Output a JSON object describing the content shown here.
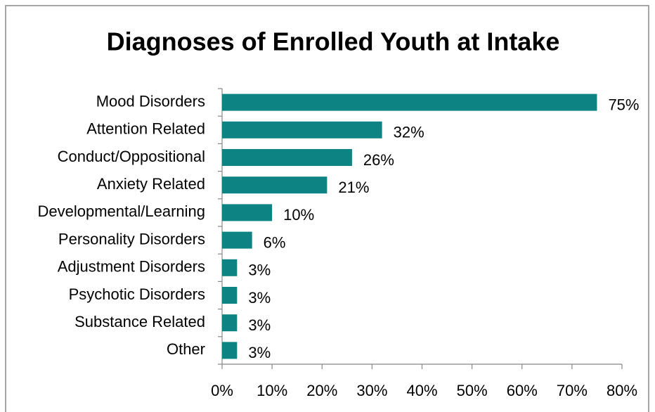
{
  "chart_data": {
    "type": "barh",
    "title": "Diagnoses of Enrolled Youth at Intake",
    "categories": [
      "Mood Disorders",
      "Attention Related",
      "Conduct/Oppositional",
      "Anxiety Related",
      "Developmental/Learning",
      "Personality Disorders",
      "Adjustment Disorders",
      "Psychotic Disorders",
      "Substance Related",
      "Other"
    ],
    "values": [
      75,
      32,
      26,
      21,
      10,
      6,
      3,
      3,
      3,
      3
    ],
    "value_labels": [
      "75%",
      "32%",
      "26%",
      "21%",
      "10%",
      "6%",
      "3%",
      "3%",
      "3%",
      "3%"
    ],
    "color": "#0e8383",
    "xlim": [
      0,
      80
    ],
    "xticks": [
      {
        "value": 0,
        "label": "0%"
      },
      {
        "value": 10,
        "label": "10%"
      },
      {
        "value": 20,
        "label": "20%"
      },
      {
        "value": 30,
        "label": "30%"
      },
      {
        "value": 40,
        "label": "40%"
      },
      {
        "value": 50,
        "label": "50%"
      },
      {
        "value": 60,
        "label": "60%"
      },
      {
        "value": 70,
        "label": "70%"
      },
      {
        "value": 80,
        "label": "80%"
      }
    ],
    "grid": false
  }
}
